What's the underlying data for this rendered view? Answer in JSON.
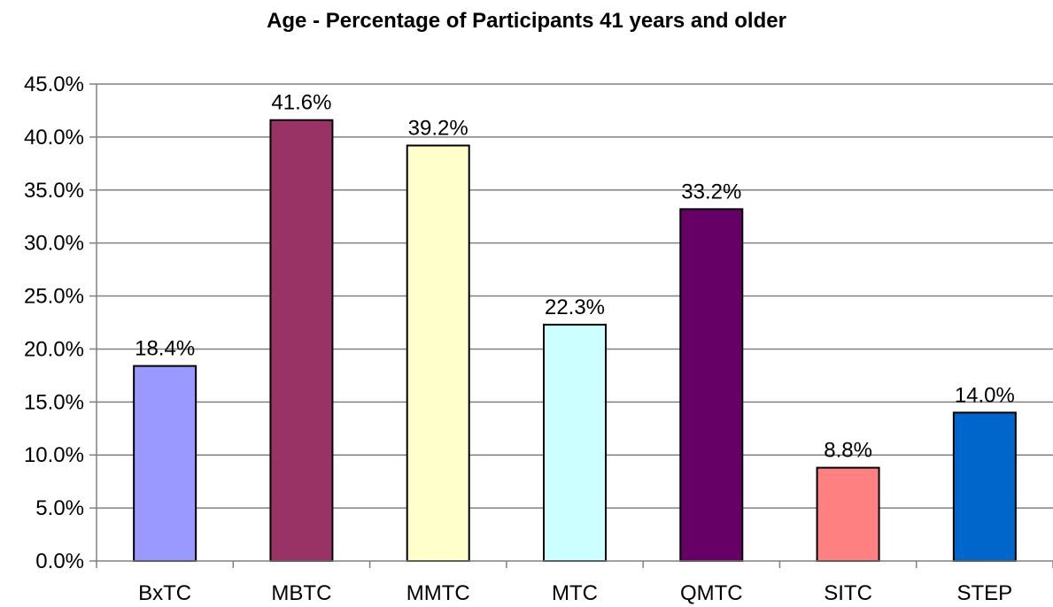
{
  "chart_data": {
    "type": "bar",
    "title": "Age - Percentage of Participants 41 years and older",
    "categories": [
      "BxTC",
      "MBTC",
      "MMTC",
      "MTC",
      "QMTC",
      "SITC",
      "STEP"
    ],
    "values": [
      18.4,
      41.6,
      39.2,
      22.3,
      33.2,
      8.8,
      14.0
    ],
    "value_labels": [
      "18.4%",
      "41.6%",
      "39.2%",
      "22.3%",
      "33.2%",
      "8.8%",
      "14.0%"
    ],
    "colors": [
      "#9999ff",
      "#993366",
      "#ffffcc",
      "#ccffff",
      "#660066",
      "#ff8080",
      "#0066cc"
    ],
    "ylim": [
      0,
      45
    ],
    "yticks": [
      0,
      5,
      10,
      15,
      20,
      25,
      30,
      35,
      40,
      45
    ],
    "ytick_labels": [
      "0.0%",
      "5.0%",
      "10.0%",
      "15.0%",
      "20.0%",
      "25.0%",
      "30.0%",
      "35.0%",
      "40.0%",
      "45.0%"
    ],
    "xlabel": "",
    "ylabel": "",
    "grid": true,
    "legend": "none"
  }
}
